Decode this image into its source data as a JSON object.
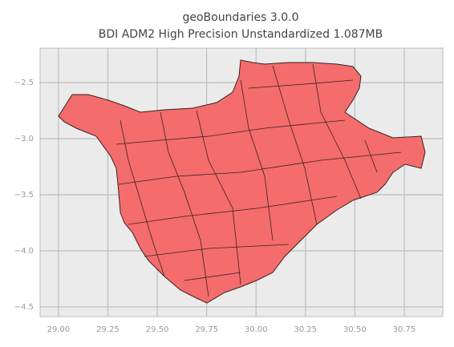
{
  "chart_data": {
    "type": "map",
    "title": "geoBoundaries 3.0.0",
    "subtitle": "BDI ADM2 High Precision Unstandardized 1.087MB",
    "xlim": [
      28.907,
      30.945
    ],
    "ylim": [
      -4.586,
      -2.193
    ],
    "xticks": [
      {
        "value": 29,
        "label": "29.00"
      },
      {
        "value": 29.25,
        "label": "29.25"
      },
      {
        "value": 29.5,
        "label": "29.50"
      },
      {
        "value": 29.75,
        "label": "29.75"
      },
      {
        "value": 30,
        "label": "30.00"
      },
      {
        "value": 30.25,
        "label": "30.25"
      },
      {
        "value": 30.5,
        "label": "30.50"
      },
      {
        "value": 30.75,
        "label": "30.75"
      }
    ],
    "yticks": [
      {
        "value": -2.5,
        "label": "−2.5"
      },
      {
        "value": -3,
        "label": "−3.0"
      },
      {
        "value": -3.5,
        "label": "−3.5"
      },
      {
        "value": -4,
        "label": "−4.0"
      },
      {
        "value": -4.5,
        "label": "−4.5"
      }
    ],
    "grid": true,
    "color": "#f46c6c"
  }
}
